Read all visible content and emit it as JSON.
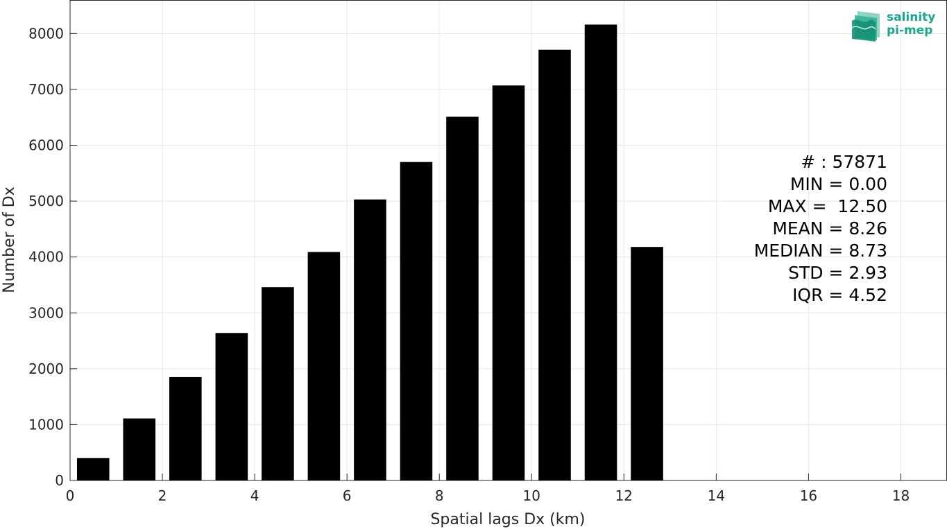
{
  "chart_data": {
    "type": "bar",
    "xlabel": "Spatial lags Dx (km)",
    "ylabel": "Number of Dx",
    "xlim": [
      0,
      19
    ],
    "ylim": [
      0,
      8600
    ],
    "xticks": [
      0,
      2,
      4,
      6,
      8,
      10,
      12,
      14,
      16,
      18
    ],
    "yticks": [
      0,
      1000,
      2000,
      3000,
      4000,
      5000,
      6000,
      7000,
      8000
    ],
    "bar_width": 0.7,
    "bar_color": "#000000",
    "grid": true,
    "bars": [
      {
        "x": 0.5,
        "value": 400
      },
      {
        "x": 1.5,
        "value": 1110
      },
      {
        "x": 2.5,
        "value": 1850
      },
      {
        "x": 3.5,
        "value": 2640
      },
      {
        "x": 4.5,
        "value": 3460
      },
      {
        "x": 5.5,
        "value": 4090
      },
      {
        "x": 6.5,
        "value": 5030
      },
      {
        "x": 7.5,
        "value": 5700
      },
      {
        "x": 8.5,
        "value": 6510
      },
      {
        "x": 9.5,
        "value": 7070
      },
      {
        "x": 10.5,
        "value": 7710
      },
      {
        "x": 11.5,
        "value": 8160
      },
      {
        "x": 12.5,
        "value": 4180
      }
    ]
  },
  "stats": [
    "# : 57871",
    "MIN = 0.00",
    "MAX =  12.50",
    "MEAN = 8.26",
    "MEDIAN = 8.73",
    "STD = 2.93",
    "IQR = 4.52"
  ],
  "logo": {
    "line1": "salinity",
    "line2": "pi-mep",
    "color": "#1aa58c",
    "icon": "wave-stack-icon"
  }
}
